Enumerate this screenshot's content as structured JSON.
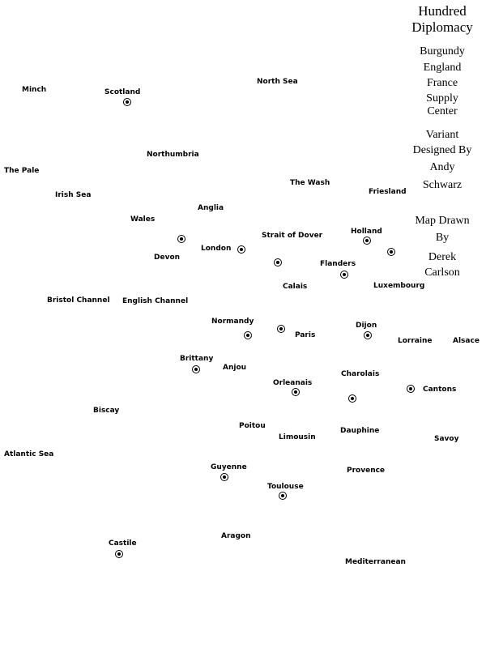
{
  "title": "Hundred Diplomacy",
  "legend": {
    "powers": [
      "Burgundy",
      "England",
      "France"
    ],
    "supply_center_label": [
      "Supply",
      "Center"
    ],
    "variant_credit": [
      "Variant",
      "Designed By",
      "Andy",
      "Schwarz"
    ],
    "map_credit": [
      "Map Drawn",
      "By",
      "Derek",
      "Carlson"
    ]
  },
  "provinces": {
    "minch": "Minch",
    "scotland": "Scotland",
    "north_sea": "North Sea",
    "northumbria": "Northumbria",
    "the_pale": "The Pale",
    "irish_sea": "Irish Sea",
    "the_wash": "The Wash",
    "friesland": "Friesland",
    "anglia": "Anglia",
    "wales": "Wales",
    "london": "London",
    "strait_of_dover": "Strait of Dover",
    "holland": "Holland",
    "devon": "Devon",
    "flanders": "Flanders",
    "calais": "Calais",
    "luxembourg": "Luxembourg",
    "bristol_channel": "Bristol Channel",
    "english_channel": "English Channel",
    "normandy": "Normandy",
    "dijon": "Dijon",
    "paris": "Paris",
    "lorraine": "Lorraine",
    "alsace": "Alsace",
    "brittany": "Brittany",
    "anjou": "Anjou",
    "charolais": "Charolais",
    "orleanais": "Orleanais",
    "cantons": "Cantons",
    "biscay": "Biscay",
    "poitou": "Poitou",
    "dauphine": "Dauphine",
    "limousin": "Limousin",
    "savoy": "Savoy",
    "atlantic_sea": "Atlantic Sea",
    "guyenne": "Guyenne",
    "provence": "Provence",
    "toulouse": "Toulouse",
    "aragon": "Aragon",
    "castile": "Castile",
    "mediterranean": "Mediterranean"
  }
}
